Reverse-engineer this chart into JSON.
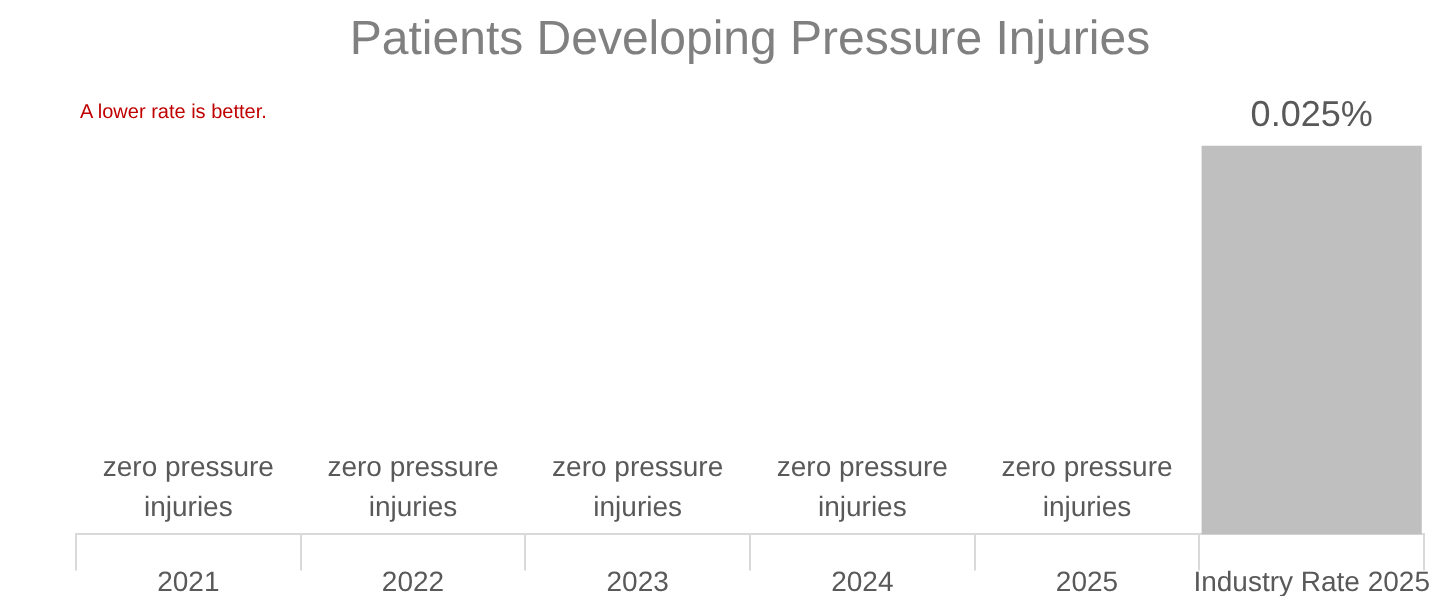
{
  "chart_data": {
    "type": "bar",
    "title": "Patients Developing Pressure Injuries",
    "annotations": [
      "A lower rate is better."
    ],
    "categories": [
      "2021",
      "2022",
      "2023",
      "2024",
      "2025",
      "Industry Rate 2025"
    ],
    "values": [
      0,
      0,
      0,
      0,
      0,
      0.025
    ],
    "value_labels": [
      "zero pressure injuries",
      "zero pressure injuries",
      "zero pressure injuries",
      "zero pressure injuries",
      "zero pressure injuries",
      "0.025%"
    ],
    "color": "#bfbfbf",
    "legend": false,
    "grid": false,
    "tick_labels": "x"
  }
}
